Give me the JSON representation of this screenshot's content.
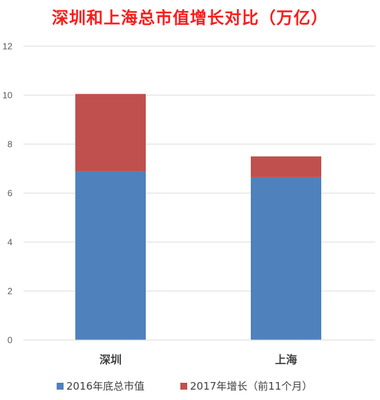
{
  "chart_data": {
    "type": "bar",
    "stacked": true,
    "title": "深圳和上海总市值增长对比（万亿）",
    "categories": [
      "深圳",
      "上海"
    ],
    "series": [
      {
        "name": "2016年底总市值",
        "values": [
          6.9,
          6.65
        ],
        "color": "#4f81bd"
      },
      {
        "name": "2017年增长（前11个月）",
        "values": [
          3.15,
          0.85
        ],
        "color": "#c0504d"
      }
    ],
    "xlabel": "",
    "ylabel": "",
    "ylim": [
      0,
      12
    ],
    "yticks": [
      0,
      2,
      4,
      6,
      8,
      10,
      12
    ],
    "grid": true,
    "legend_position": "bottom"
  }
}
